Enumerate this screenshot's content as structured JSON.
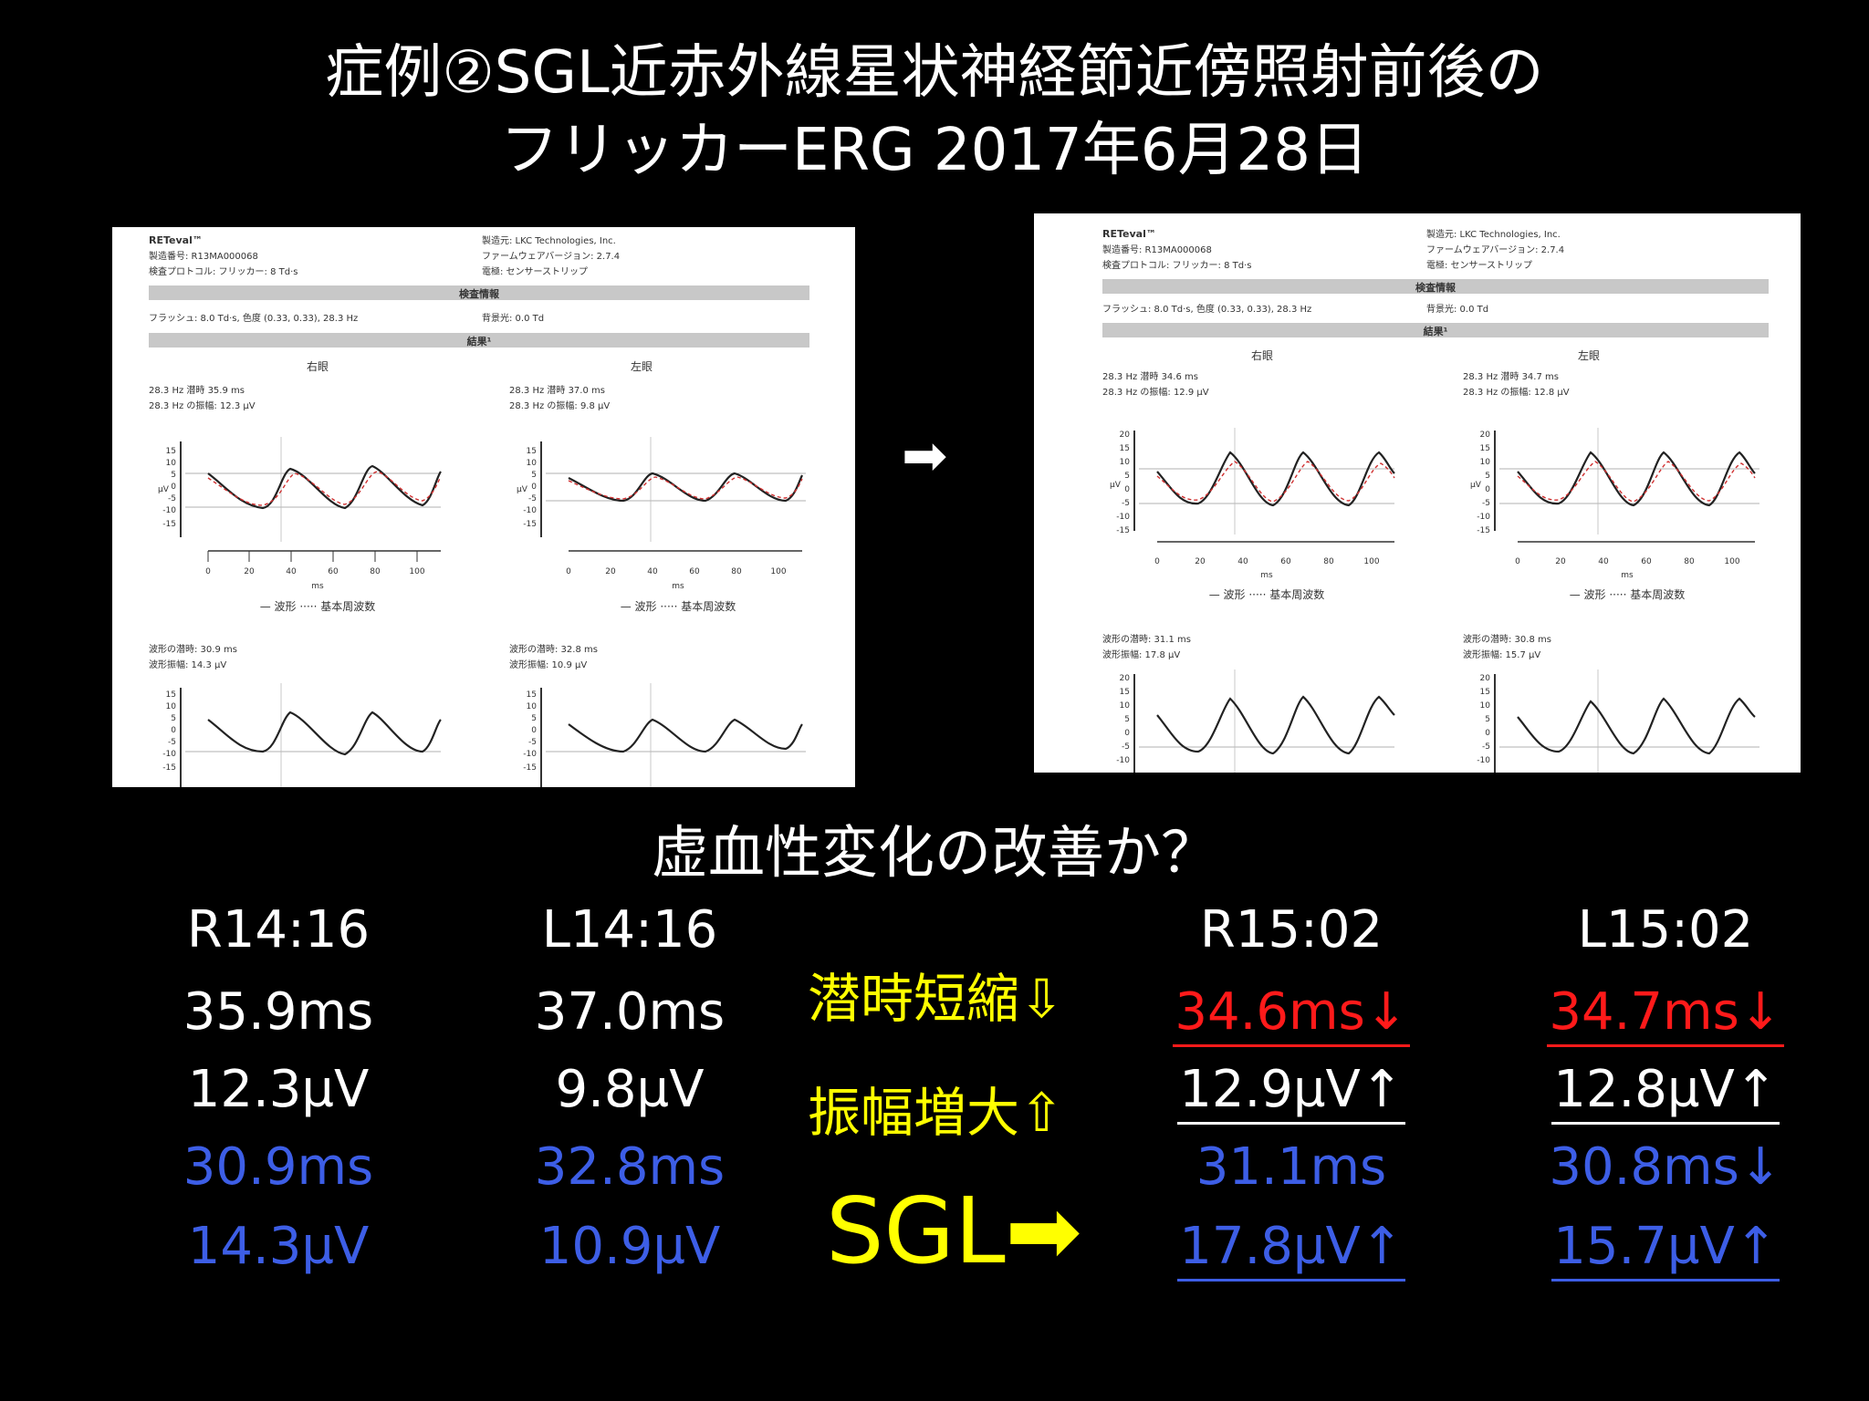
{
  "title_line1": "症例②SGL近赤外線星状神経節近傍照射前後の",
  "title_line2": "フリッカーERG 2017年6月28日",
  "arrow_between": "➡",
  "reports": {
    "before": {
      "brand": "RETeval™",
      "serial": "製造番号: R13MA000068",
      "protocol": "検査プロトコル: フリッカー: 8 Td·s",
      "maker": "製造元: LKC Technologies, Inc.",
      "firmware": "ファームウェアバージョン: 2.7.4",
      "electrode": "電極: センサーストリップ",
      "section_info": "検査情報",
      "flash": "フラッシュ: 8.0 Td·s, 色度 (0.33, 0.33), 28.3 Hz",
      "background": "背景光: 0.0 Td",
      "section_result": "結果¹",
      "right_eye": "右眼",
      "left_eye": "左眼",
      "r_latency": "28.3 Hz 潜時 35.9 ms",
      "r_amplitude": "28.3 Hz の振幅: 12.3 µV",
      "l_latency": "28.3 Hz 潜時 37.0 ms",
      "l_amplitude": "28.3 Hz の振幅: 9.8 µV",
      "legend": "— 波形 ····· 基本周波数",
      "x_unit": "ms",
      "y_unit": "µV",
      "r_wave_latency": "波形の潜時: 30.9 ms",
      "r_wave_amplitude": "波形振幅: 14.3 µV",
      "l_wave_latency": "波形の潜時: 32.8 ms",
      "l_wave_amplitude": "波形振幅: 10.9 µV"
    },
    "after": {
      "brand": "RETeval™",
      "serial": "製造番号: R13MA000068",
      "protocol": "検査プロトコル: フリッカー: 8 Td·s",
      "maker": "製造元: LKC Technologies, Inc.",
      "firmware": "ファームウェアバージョン: 2.7.4",
      "electrode": "電極: センサーストリップ",
      "section_info": "検査情報",
      "flash": "フラッシュ: 8.0 Td·s, 色度 (0.33, 0.33), 28.3 Hz",
      "background": "背景光: 0.0 Td",
      "section_result": "結果¹",
      "right_eye": "右眼",
      "left_eye": "左眼",
      "r_latency": "28.3 Hz 潜時 34.6 ms",
      "r_amplitude": "28.3 Hz の振幅: 12.9 µV",
      "l_latency": "28.3 Hz 潜時 34.7 ms",
      "l_amplitude": "28.3 Hz の振幅: 12.8 µV",
      "legend": "— 波形 ····· 基本周波数",
      "x_unit": "ms",
      "y_unit": "µV",
      "r_wave_latency": "波形の潜時: 31.1 ms",
      "r_wave_amplitude": "波形振幅: 17.8 µV",
      "l_wave_latency": "波形の潜時: 30.8 ms",
      "l_wave_amplitude": "波形振幅: 15.7 µV"
    }
  },
  "question": "虚血性変化の改善か？",
  "table": {
    "r1416": {
      "header": "R14:16",
      "v1": "35.9ms",
      "v2": "12.3µV",
      "v3": "30.9ms",
      "v4": "14.3µV"
    },
    "l1416": {
      "header": "L14:16",
      "v1": "37.0ms",
      "v2": "9.8µV",
      "v3": "32.8ms",
      "v4": "10.9µV"
    },
    "r1502": {
      "header": "R15:02",
      "v1": "34.6ms↓",
      "v2": "12.9µV↑",
      "v3": "31.1ms",
      "v4": "17.8µV↑"
    },
    "l1502": {
      "header": "L15:02",
      "v1": "34.7ms↓",
      "v2": "12.8µV↑",
      "v3": "30.8ms↓",
      "v4": "15.7µV↑"
    }
  },
  "labels": {
    "latency_short": "潜時短縮⇩",
    "amplitude_up": "振幅増大⇧",
    "sgl": "SGL➡"
  },
  "colors": {
    "yellow": "#ffff00",
    "red": "#ff1a1a",
    "blue": "#3d5ee6"
  }
}
